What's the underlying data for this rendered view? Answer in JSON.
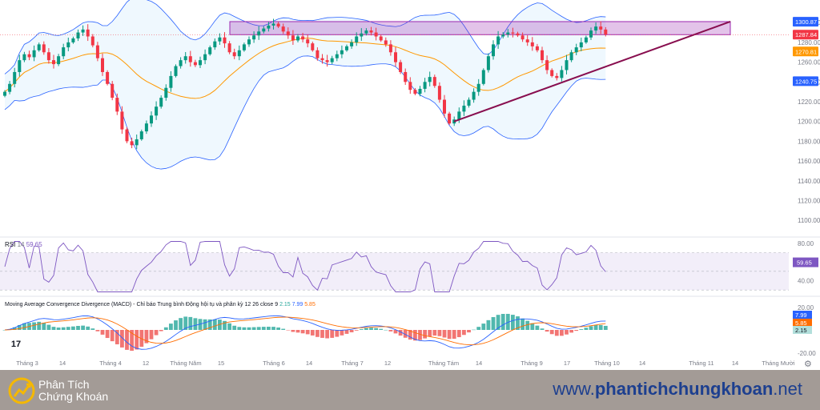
{
  "chart_data": {
    "type": "candlestick",
    "instrument_note": "",
    "price_axis": {
      "ticks": [
        1300,
        1280,
        1260,
        1240,
        1220,
        1200,
        1180,
        1160,
        1140,
        1120,
        1100
      ],
      "ylim": [
        1088,
        1318
      ]
    },
    "price_labels": [
      {
        "value": 1300.87,
        "text": "1300.87",
        "color": "#2962ff"
      },
      {
        "value": 1287.84,
        "text": "1287.84",
        "color": "#f23645"
      },
      {
        "value": 1270.81,
        "text": "1270.81",
        "color": "#ff9800"
      },
      {
        "value": 1240.75,
        "text": "1240.75",
        "color": "#2962ff"
      }
    ],
    "time_axis": [
      "Tháng 3",
      "14",
      "Tháng 4",
      "12",
      "Tháng Năm",
      "15",
      "Tháng 6",
      "14",
      "Tháng 7",
      "12",
      "Tháng Tám",
      "14",
      "Tháng 9",
      "17",
      "Tháng 10",
      "14",
      "Tháng 11",
      "14",
      "Tháng Mười"
    ],
    "close_series": [
      1230,
      1238,
      1250,
      1262,
      1268,
      1265,
      1272,
      1278,
      1270,
      1262,
      1258,
      1266,
      1275,
      1280,
      1284,
      1290,
      1293,
      1286,
      1277,
      1264,
      1250,
      1238,
      1224,
      1210,
      1192,
      1180,
      1176,
      1182,
      1190,
      1198,
      1206,
      1215,
      1224,
      1234,
      1246,
      1256,
      1262,
      1266,
      1260,
      1257,
      1262,
      1268,
      1275,
      1281,
      1285,
      1279,
      1270,
      1266,
      1272,
      1278,
      1283,
      1287,
      1291,
      1294,
      1297,
      1299,
      1296,
      1291,
      1287,
      1282,
      1286,
      1283,
      1279,
      1272,
      1264,
      1262,
      1260,
      1264,
      1268,
      1272,
      1276,
      1280,
      1286,
      1289,
      1292,
      1290,
      1286,
      1282,
      1278,
      1270,
      1260,
      1250,
      1240,
      1232,
      1228,
      1233,
      1240,
      1245,
      1236,
      1222,
      1208,
      1198,
      1202,
      1210,
      1216,
      1222,
      1230,
      1238,
      1252,
      1266,
      1278,
      1286,
      1288,
      1290,
      1289,
      1287,
      1283,
      1280,
      1276,
      1272,
      1262,
      1252,
      1246,
      1244,
      1252,
      1262,
      1270,
      1275,
      1280,
      1285,
      1292,
      1296,
      1293,
      1288
    ],
    "indicators": {
      "bollinger": {
        "color": "#2962ff",
        "fill": "rgba(33,150,243,0.07)"
      },
      "sma": {
        "color": "#ff9800"
      }
    },
    "annotations": {
      "resistance_zone": {
        "y_low": 1287.8,
        "y_high": 1301.0,
        "fill": "rgba(156,39,176,0.28)",
        "stroke": "#9c27b0"
      },
      "trendline": {
        "color": "#880e4f",
        "from_value": 1200,
        "to_value": 1301
      }
    },
    "up_color": "#089981",
    "down_color": "#f23645"
  },
  "rsi": {
    "label": "RSI",
    "param": "14",
    "value_text": "59.65",
    "axis_ticks": [
      80,
      40
    ],
    "ylim": [
      25,
      85
    ],
    "upper_band": 70,
    "mid_band": 50,
    "lower_band": 30,
    "band_fill": "rgba(126,87,194,0.10)",
    "line_color": "#7e57c2",
    "last_label": "59.65"
  },
  "macd": {
    "title": "Moving Average Convergence Divergence (MACD) - Chỉ báo Trung bình Động hội tụ và phân kỳ 12 26 close 9",
    "values": [
      "2.15",
      "7.99",
      "5.85"
    ],
    "value_colors": [
      "#26a69a",
      "#2962ff",
      "#ff6d00"
    ],
    "axis_ticks": [
      "20.00",
      "-20.00"
    ],
    "labels": [
      {
        "text": "7.99",
        "color": "#2962ff"
      },
      {
        "text": "5.85",
        "color": "#ff6d00"
      },
      {
        "text": "2.15",
        "color": "#b2dfdb"
      }
    ],
    "hist_pos_color": "#26a69a",
    "hist_neg_color": "#ef5350",
    "macd_color": "#2962ff",
    "signal_color": "#ff6d00"
  },
  "footer": {
    "brand_line1": "Phân Tích",
    "brand_line2": "Chứng Khoán",
    "url_prefix": "www.",
    "url_bold": "phantichchungkhoan",
    "url_suffix": ".net"
  },
  "tv_logo_text": "17",
  "settings_icon": "gear-icon"
}
